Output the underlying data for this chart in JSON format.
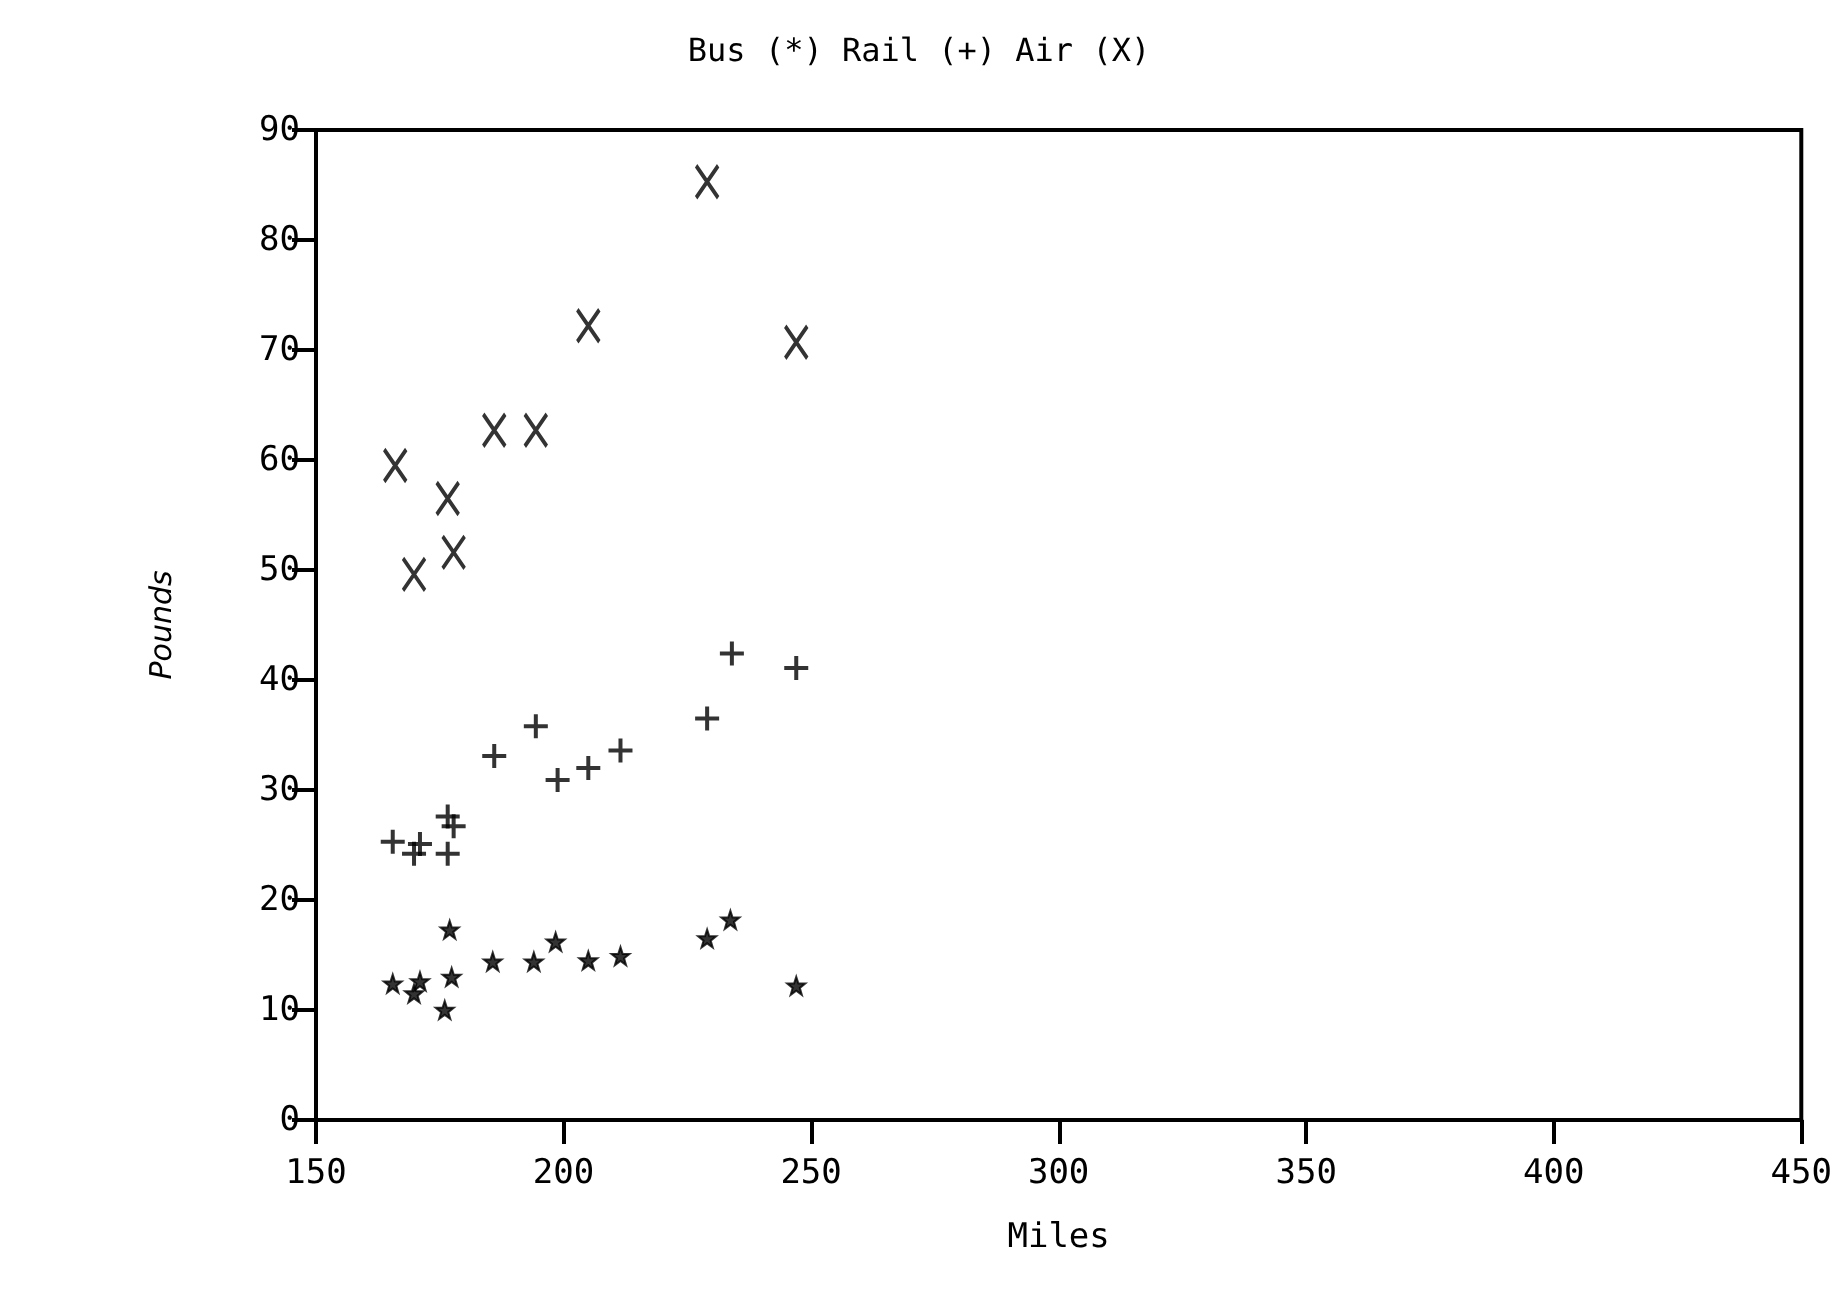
{
  "chart_data": {
    "type": "scatter",
    "title": "Bus (*) Rail (+) Air (X)",
    "xlabel": "Miles",
    "ylabel": "Pounds",
    "xlim": [
      150,
      450
    ],
    "xticks": [
      150,
      200,
      250,
      300,
      350,
      400,
      450
    ],
    "ylim": [
      0,
      90
    ],
    "yticks": [
      0,
      10,
      20,
      30,
      40,
      50,
      60,
      70,
      80,
      90
    ],
    "grid": false,
    "series": [
      {
        "color": "#000000",
        "marker": "star",
        "x": [
          165.5,
          169.8,
          171,
          176,
          177,
          177.4,
          185.7,
          194,
          198.4,
          205,
          211.5,
          229,
          233.7,
          247
        ],
        "values": [
          12.4,
          11.5,
          12.6,
          10,
          17.3,
          13,
          14.4,
          14.4,
          16.2,
          14.5,
          14.9,
          16.5,
          18.2,
          12.2
        ]
      },
      {
        "color": "#000000",
        "marker": "cross",
        "x": [
          165.5,
          169.8,
          171,
          176.6,
          176.6,
          177.8,
          186,
          194.4,
          198.8,
          205,
          211.5,
          229,
          234,
          247
        ],
        "values": [
          25.3,
          24.2,
          25.1,
          24.2,
          27.6,
          26.7,
          33.1,
          35.8,
          30.9,
          32,
          33.6,
          36.5,
          42.4,
          41.1
        ]
      },
      {
        "color": "#000000",
        "marker": "x",
        "x": [
          166,
          169.8,
          176.6,
          177.8,
          186,
          194.4,
          205,
          229,
          247
        ],
        "values": [
          59.5,
          49.6,
          56.5,
          51.6,
          62.7,
          62.7,
          72.2,
          85.3,
          70.7
        ]
      }
    ]
  }
}
